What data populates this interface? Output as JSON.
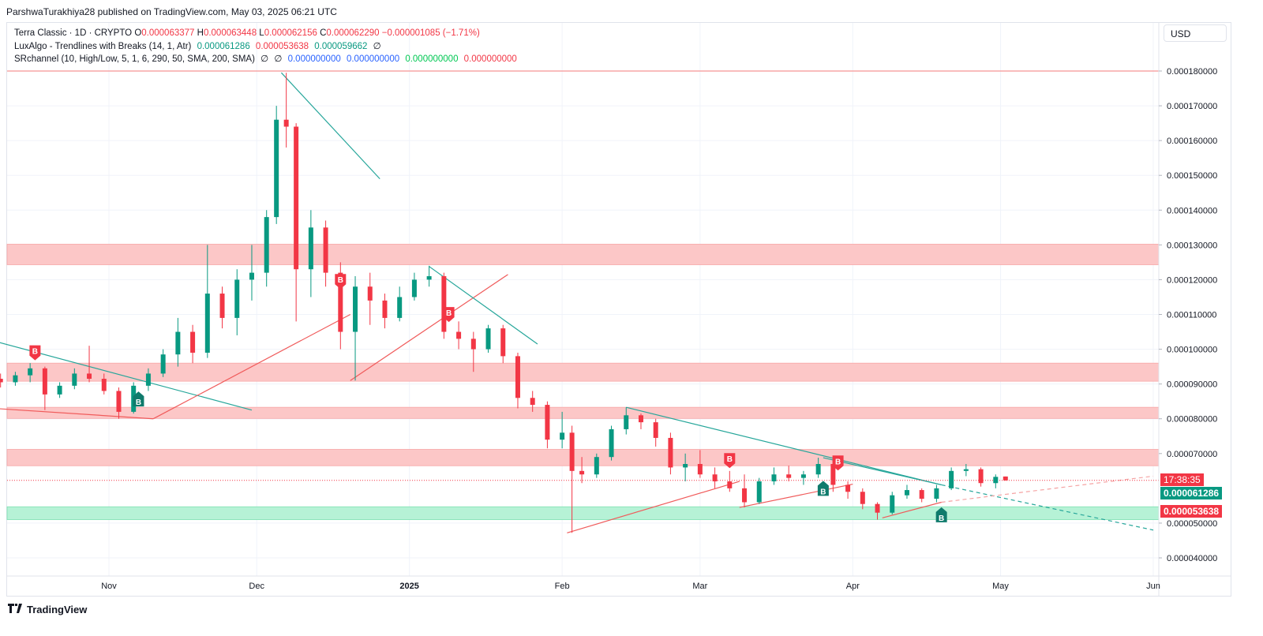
{
  "header": {
    "published_by": "ParshwaTurakhiya28 published on TradingView.com, May 03, 2025 06:21 UTC"
  },
  "currency_button": "USD",
  "legend": {
    "symbol": "Terra Classic · 1D · CRYPTO",
    "open_label": "O",
    "open": "0.000063377",
    "high_label": "H",
    "high": "0.000063448",
    "low_label": "L",
    "low": "0.000062156",
    "close_label": "C",
    "close": "0.000062290",
    "change": "−0.000001085 (−1.71%)",
    "lux_label": "LuxAlgo - Trendlines with Breaks (14, 1, Atr)",
    "lux_v1": "0.000061286",
    "lux_v2": "0.000053638",
    "lux_v3": "0.000059662",
    "lux_v4": "∅",
    "sr_label": "SRchannel (10, High/Low, 5, 1, 6, 290, 50, SMA, 200, SMA)",
    "sr_v1": "∅",
    "sr_v2": "∅",
    "sr_v3": "0.000000000",
    "sr_v4": "0.000000000",
    "sr_v5": "0.000000000",
    "sr_v6": "0.000000000"
  },
  "price_tags": {
    "countdown": "17:38:35",
    "lux_upper": "0.000061286",
    "lux_lower": "0.000053638"
  },
  "footer": {
    "brand": "TradingView"
  },
  "colors": {
    "up": "#089981",
    "down": "#f23645",
    "resistance_zone": "#fcc7c7",
    "support_zone": "#b6f2d6"
  },
  "chart_data": {
    "type": "candlestick",
    "x_ticks": [
      "Nov",
      "Dec",
      "2025",
      "Feb",
      "Mar",
      "Apr",
      "May",
      "Jun"
    ],
    "y_ticks": [
      "0.000180000",
      "0.000170000",
      "0.000160000",
      "0.000150000",
      "0.000140000",
      "0.000130000",
      "0.000120000",
      "0.000110000",
      "0.000100000",
      "0.000090000",
      "0.000080000",
      "0.000070000",
      "0.000050000",
      "0.000040000"
    ],
    "ylim": [
      3.5e-05,
      0.000183
    ],
    "grid": true,
    "last_price": 6.229e-05,
    "sr_zones": [
      {
        "type": "resistance",
        "low": 0.0001243,
        "high": 0.0001302
      },
      {
        "type": "resistance",
        "low": 9.08e-05,
        "high": 9.6e-05
      },
      {
        "type": "resistance",
        "low": 8.01e-05,
        "high": 8.33e-05
      },
      {
        "type": "resistance",
        "low": 6.65e-05,
        "high": 7.12e-05
      },
      {
        "type": "support",
        "low": 5.1e-05,
        "high": 5.47e-05
      }
    ],
    "horizontal_line": 0.00018,
    "trendlines": [
      {
        "color": "teal",
        "from": [
          "2024-10-03",
          0.0001045
        ],
        "to": [
          "2024-11-30",
          8.25e-05
        ]
      },
      {
        "color": "red",
        "from": [
          "2024-10-03",
          8.35e-05
        ],
        "to": [
          "2024-11-10",
          8e-05
        ]
      },
      {
        "color": "red",
        "from": [
          "2024-11-10",
          8e-05
        ],
        "to": [
          "2024-12-20",
          0.00011
        ]
      },
      {
        "color": "teal",
        "from": [
          "2024-12-06",
          0.0001795
        ],
        "to": [
          "2024-12-26",
          0.000149
        ]
      },
      {
        "color": "red",
        "from": [
          "2024-12-20",
          9.1e-05
        ],
        "to": [
          "2025-01-21",
          0.0001215
        ]
      },
      {
        "color": "teal",
        "from": [
          "2025-01-05",
          0.0001238
        ],
        "to": [
          "2025-01-27",
          0.0001015
        ]
      },
      {
        "color": "red",
        "from": [
          "2025-02-02",
          4.72e-05
        ],
        "to": [
          "2025-03-09",
          6.2e-05
        ]
      },
      {
        "color": "teal",
        "from": [
          "2025-02-14",
          8.33e-05
        ],
        "to": [
          "2025-04-19",
          6.1e-05
        ]
      },
      {
        "color": "red",
        "from": [
          "2025-03-09",
          5.45e-05
        ],
        "to": [
          "2025-04-01",
          6.12e-05
        ]
      },
      {
        "color": "teal",
        "from": [
          "2025-03-26",
          6.88e-05
        ],
        "to": [
          "2025-04-19",
          6.1e-05
        ]
      },
      {
        "color": "red",
        "from": [
          "2025-04-07",
          5.15e-05
        ],
        "to": [
          "2025-04-19",
          5.6e-05
        ]
      }
    ],
    "projections": [
      {
        "color": "teal",
        "from": [
          "2025-04-19",
          6.1e-05
        ],
        "to": [
          "2025-06-01",
          4.8e-05
        ]
      },
      {
        "color": "red",
        "from": [
          "2025-04-19",
          5.6e-05
        ],
        "to": [
          "2025-06-01",
          6.35e-05
        ]
      }
    ],
    "break_labels": [
      {
        "label": "B",
        "dir": "down",
        "date": "2024-10-17",
        "price": 9.75e-05
      },
      {
        "label": "B",
        "dir": "up",
        "date": "2024-11-07",
        "price": 8.65e-05
      },
      {
        "label": "B",
        "dir": "down",
        "date": "2024-12-18",
        "price": 0.000118
      },
      {
        "label": "B",
        "dir": "down",
        "date": "2025-01-09",
        "price": 0.0001085
      },
      {
        "label": "B",
        "dir": "down",
        "date": "2025-03-07",
        "price": 6.65e-05
      },
      {
        "label": "B",
        "dir": "up",
        "date": "2025-03-26",
        "price": 6.08e-05
      },
      {
        "label": "B",
        "dir": "down",
        "date": "2025-03-29",
        "price": 6.58e-05
      },
      {
        "label": "B",
        "dir": "up",
        "date": "2025-04-19",
        "price": 5.32e-05
      }
    ],
    "ohlc": [
      [
        "2024-10-01",
        8.98e-05,
        9.15e-05,
        8.82e-05,
        8.9e-05
      ],
      [
        "2024-10-04",
        8.9e-05,
        9.1e-05,
        8.7e-05,
        9e-05
      ],
      [
        "2024-10-07",
        9e-05,
        9.25e-05,
        8.85e-05,
        9.15e-05
      ],
      [
        "2024-10-10",
        9.15e-05,
        9.3e-05,
        8.9e-05,
        9.05e-05
      ],
      [
        "2024-10-13",
        9.05e-05,
        9.35e-05,
        8.95e-05,
        9.25e-05
      ],
      [
        "2024-10-16",
        9.25e-05,
        9.6e-05,
        9.05e-05,
        9.45e-05
      ],
      [
        "2024-10-19",
        9.45e-05,
        9.5e-05,
        8.25e-05,
        8.7e-05
      ],
      [
        "2024-10-22",
        8.7e-05,
        9.05e-05,
        8.6e-05,
        8.95e-05
      ],
      [
        "2024-10-25",
        8.95e-05,
        9.45e-05,
        8.85e-05,
        9.3e-05
      ],
      [
        "2024-10-28",
        9.3e-05,
        0.000101,
        9.05e-05,
        9.15e-05
      ],
      [
        "2024-10-31",
        9.15e-05,
        9.3e-05,
        8.7e-05,
        8.8e-05
      ],
      [
        "2024-11-03",
        8.8e-05,
        8.9e-05,
        8e-05,
        8.2e-05
      ],
      [
        "2024-11-06",
        8.2e-05,
        9.05e-05,
        8.15e-05,
        8.95e-05
      ],
      [
        "2024-11-09",
        8.95e-05,
        9.45e-05,
        8.8e-05,
        9.3e-05
      ],
      [
        "2024-11-12",
        9.3e-05,
        0.0001,
        9.2e-05,
        9.85e-05
      ],
      [
        "2024-11-15",
        9.85e-05,
        0.000109,
        9.5e-05,
        0.000105
      ],
      [
        "2024-11-18",
        0.000105,
        0.000107,
        9.6e-05,
        9.9e-05
      ],
      [
        "2024-11-21",
        9.9e-05,
        0.00013,
        9.75e-05,
        0.000116
      ],
      [
        "2024-11-24",
        0.000116,
        0.000118,
        0.000106,
        0.000109
      ],
      [
        "2024-11-27",
        0.000109,
        0.000123,
        0.000104,
        0.00012
      ],
      [
        "2024-11-30",
        0.00012,
        0.00013,
        0.000114,
        0.000122
      ],
      [
        "2024-12-03",
        0.000122,
        0.00014,
        0.000118,
        0.000138
      ],
      [
        "2024-12-05",
        0.000138,
        0.00017,
        0.000136,
        0.000166
      ],
      [
        "2024-12-07",
        0.000166,
        0.0001795,
        0.000158,
        0.000164
      ],
      [
        "2024-12-09",
        0.000164,
        0.000165,
        0.000108,
        0.000123
      ],
      [
        "2024-12-12",
        0.000123,
        0.00014,
        0.000115,
        0.000135
      ],
      [
        "2024-12-15",
        0.000135,
        0.000137,
        0.000118,
        0.000122
      ],
      [
        "2024-12-18",
        0.000122,
        0.000125,
        0.0001,
        0.000105
      ],
      [
        "2024-12-21",
        0.000105,
        0.000121,
        9.1e-05,
        0.000118
      ],
      [
        "2024-12-24",
        0.000118,
        0.000122,
        0.000107,
        0.000114
      ],
      [
        "2024-12-27",
        0.000114,
        0.000116,
        0.000106,
        0.000109
      ],
      [
        "2024-12-30",
        0.000109,
        0.000118,
        0.000108,
        0.000115
      ],
      [
        "2025-01-02",
        0.000115,
        0.000122,
        0.000114,
        0.00012
      ],
      [
        "2025-01-05",
        0.00012,
        0.000124,
        0.000118,
        0.000121
      ],
      [
        "2025-01-08",
        0.000121,
        0.000122,
        0.000103,
        0.000105
      ],
      [
        "2025-01-11",
        0.000105,
        0.000108,
        0.0001,
        0.000103
      ],
      [
        "2025-01-14",
        0.000103,
        0.000105,
        9.35e-05,
        0.0001
      ],
      [
        "2025-01-17",
        0.0001,
        0.000107,
        9.9e-05,
        0.000106
      ],
      [
        "2025-01-20",
        0.000106,
        0.000107,
        9.6e-05,
        9.8e-05
      ],
      [
        "2025-01-23",
        9.8e-05,
        9.9e-05,
        8.3e-05,
        8.6e-05
      ],
      [
        "2025-01-26",
        8.6e-05,
        8.8e-05,
        8.2e-05,
        8.4e-05
      ],
      [
        "2025-01-29",
        8.4e-05,
        8.5e-05,
        7.15e-05,
        7.4e-05
      ],
      [
        "2025-02-01",
        7.4e-05,
        8.2e-05,
        7.15e-05,
        7.6e-05
      ],
      [
        "2025-02-03",
        7.6e-05,
        7.8e-05,
        4.72e-05,
        6.5e-05
      ],
      [
        "2025-02-05",
        6.5e-05,
        6.9e-05,
        6.15e-05,
        6.4e-05
      ],
      [
        "2025-02-08",
        6.4e-05,
        7e-05,
        6.3e-05,
        6.9e-05
      ],
      [
        "2025-02-11",
        6.9e-05,
        7.8e-05,
        6.8e-05,
        7.7e-05
      ],
      [
        "2025-02-14",
        7.7e-05,
        8.33e-05,
        7.55e-05,
        8.1e-05
      ],
      [
        "2025-02-17",
        8.1e-05,
        8.15e-05,
        7.7e-05,
        7.9e-05
      ],
      [
        "2025-02-20",
        7.9e-05,
        8e-05,
        7.2e-05,
        7.45e-05
      ],
      [
        "2025-02-23",
        7.45e-05,
        7.6e-05,
        6.4e-05,
        6.6e-05
      ],
      [
        "2025-02-26",
        6.6e-05,
        7e-05,
        6.2e-05,
        6.7e-05
      ],
      [
        "2025-03-01",
        6.7e-05,
        7.1e-05,
        6.3e-05,
        6.4e-05
      ],
      [
        "2025-03-04",
        6.4e-05,
        6.6e-05,
        6e-05,
        6.2e-05
      ],
      [
        "2025-03-07",
        6.2e-05,
        6.5e-05,
        5.9e-05,
        6e-05
      ],
      [
        "2025-03-10",
        6e-05,
        6.4e-05,
        5.45e-05,
        5.6e-05
      ],
      [
        "2025-03-13",
        5.6e-05,
        6.3e-05,
        5.55e-05,
        6.2e-05
      ],
      [
        "2025-03-16",
        6.2e-05,
        6.6e-05,
        6.1e-05,
        6.4e-05
      ],
      [
        "2025-03-19",
        6.4e-05,
        6.65e-05,
        6.2e-05,
        6.3e-05
      ],
      [
        "2025-03-22",
        6.3e-05,
        6.5e-05,
        6.1e-05,
        6.4e-05
      ],
      [
        "2025-03-25",
        6.4e-05,
        6.88e-05,
        6.3e-05,
        6.7e-05
      ],
      [
        "2025-03-28",
        6.7e-05,
        6.8e-05,
        5.9e-05,
        6.1e-05
      ],
      [
        "2025-03-31",
        6.1e-05,
        6.2e-05,
        5.7e-05,
        5.9e-05
      ],
      [
        "2025-04-03",
        5.9e-05,
        6e-05,
        5.4e-05,
        5.55e-05
      ],
      [
        "2025-04-06",
        5.55e-05,
        5.6e-05,
        5.1e-05,
        5.3e-05
      ],
      [
        "2025-04-09",
        5.3e-05,
        5.9e-05,
        5.25e-05,
        5.8e-05
      ],
      [
        "2025-04-12",
        5.8e-05,
        6.1e-05,
        5.7e-05,
        5.95e-05
      ],
      [
        "2025-04-15",
        5.95e-05,
        6e-05,
        5.6e-05,
        5.7e-05
      ],
      [
        "2025-04-18",
        5.7e-05,
        6.1e-05,
        5.6e-05,
        6e-05
      ],
      [
        "2025-04-21",
        6e-05,
        6.6e-05,
        5.95e-05,
        6.5e-05
      ],
      [
        "2025-04-24",
        6.5e-05,
        6.7e-05,
        6.35e-05,
        6.55e-05
      ],
      [
        "2025-04-27",
        6.55e-05,
        6.6e-05,
        6.05e-05,
        6.15e-05
      ],
      [
        "2025-04-30",
        6.15e-05,
        6.4e-05,
        6e-05,
        6.33e-05
      ],
      [
        "2025-05-02",
        6.34e-05,
        6.34e-05,
        6.22e-05,
        6.23e-05
      ]
    ]
  }
}
